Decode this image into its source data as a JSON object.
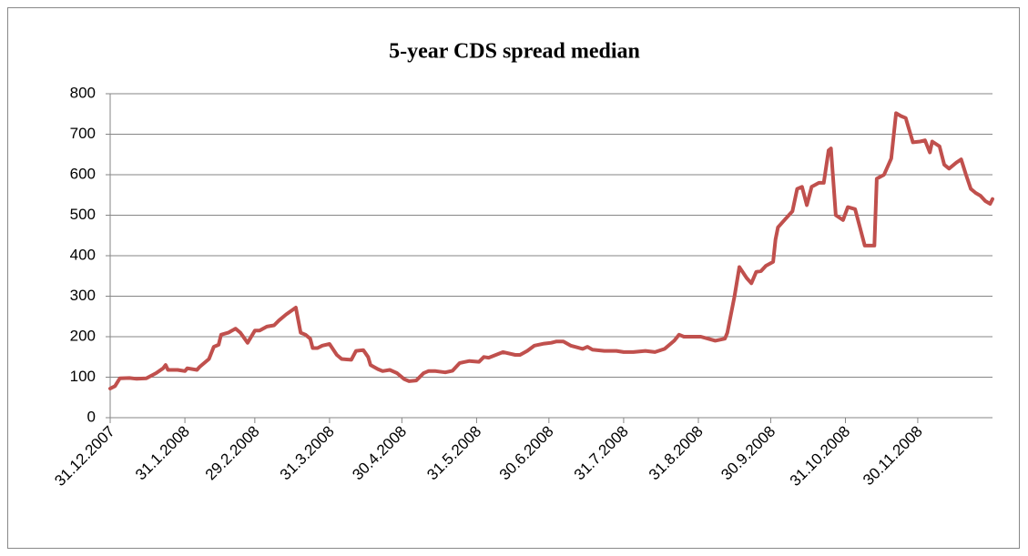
{
  "chart_data": {
    "type": "line",
    "title": "5-year CDS spread median",
    "x": [
      "31.12.2007",
      "2.1.2008",
      "4.1.2008",
      "8.1.2008",
      "11.1.2008",
      "15.1.2008",
      "19.1.2008",
      "22.1.2008",
      "23.1.2008",
      "24.1.2008",
      "28.1.2008",
      "31.1.2008",
      "1.2.2008",
      "5.2.2008",
      "6.2.2008",
      "10.2.2008",
      "12.2.2008",
      "14.2.2008",
      "15.2.2008",
      "18.2.2008",
      "21.2.2008",
      "23.2.2008",
      "26.2.2008",
      "29.2.2008",
      "2.3.2008",
      "5.3.2008",
      "8.3.2008",
      "10.3.2008",
      "13.3.2008",
      "17.3.2008",
      "19.3.2008",
      "21.3.2008",
      "23.3.2008",
      "24.3.2008",
      "26.3.2008",
      "28.3.2008",
      "31.3.2008",
      "3.4.2008",
      "5.4.2008",
      "9.4.2008",
      "11.4.2008",
      "14.4.2008",
      "16.4.2008",
      "17.4.2008",
      "20.4.2008",
      "22.4.2008",
      "25.4.2008",
      "28.4.2008",
      "1.5.2008",
      "3.5.2008",
      "6.5.2008",
      "9.5.2008",
      "11.5.2008",
      "14.5.2008",
      "18.5.2008",
      "21.5.2008",
      "24.5.2008",
      "28.5.2008",
      "1.6.2008",
      "3.6.2008",
      "5.6.2008",
      "8.6.2008",
      "11.6.2008",
      "16.6.2008",
      "18.6.2008",
      "21.6.2008",
      "24.6.2008",
      "28.6.2008",
      "1.7.2008",
      "3.7.2008",
      "6.7.2008",
      "9.7.2008",
      "14.7.2008",
      "16.7.2008",
      "18.7.2008",
      "23.7.2008",
      "28.7.2008",
      "31.7.2008",
      "4.8.2008",
      "9.8.2008",
      "13.8.2008",
      "17.8.2008",
      "21.8.2008",
      "23.8.2008",
      "25.8.2008",
      "28.8.2008",
      "1.9.2008",
      "4.9.2008",
      "7.9.2008",
      "11.9.2008",
      "12.9.2008",
      "15.9.2008",
      "17.9.2008",
      "20.9.2008",
      "22.9.2008",
      "24.9.2008",
      "26.9.2008",
      "28.9.2008",
      "1.10.2008",
      "2.10.2008",
      "3.10.2008",
      "6.10.2008",
      "9.10.2008",
      "11.10.2008",
      "13.10.2008",
      "15.10.2008",
      "17.10.2008",
      "20.10.2008",
      "22.10.2008",
      "24.10.2008",
      "25.10.2008",
      "27.10.2008",
      "30.10.2008",
      "1.11.2008",
      "4.11.2008",
      "6.11.2008",
      "8.11.2008",
      "12.11.2008",
      "13.11.2008",
      "16.11.2008",
      "19.11.2008",
      "21.11.2008",
      "23.11.2008",
      "25.11.2008",
      "28.11.2008",
      "1.12.2008",
      "3.12.2008",
      "5.12.2008",
      "6.12.2008",
      "9.12.2008",
      "11.12.2008",
      "13.12.2008",
      "16.12.2008",
      "18.12.2008",
      "20.12.2008",
      "22.12.2008",
      "24.12.2008",
      "26.12.2008",
      "28.12.2008",
      "30.12.2008",
      "31.12.2008"
    ],
    "series": [
      {
        "color": "#c0504d",
        "values": [
          72,
          78,
          97,
          98,
          96,
          97,
          110,
          122,
          130,
          118,
          118,
          115,
          122,
          118,
          125,
          145,
          175,
          180,
          205,
          210,
          220,
          210,
          185,
          215,
          215,
          225,
          228,
          240,
          255,
          272,
          210,
          205,
          195,
          172,
          172,
          178,
          182,
          155,
          145,
          143,
          165,
          167,
          150,
          130,
          120,
          115,
          118,
          110,
          95,
          90,
          92,
          110,
          115,
          115,
          112,
          116,
          135,
          140,
          138,
          150,
          148,
          155,
          162,
          155,
          155,
          165,
          178,
          183,
          185,
          188,
          188,
          178,
          170,
          175,
          168,
          165,
          165,
          162,
          162,
          165,
          162,
          170,
          190,
          205,
          200,
          200,
          200,
          195,
          190,
          195,
          210,
          300,
          372,
          345,
          332,
          360,
          362,
          375,
          385,
          440,
          470,
          490,
          510,
          565,
          570,
          525,
          570,
          580,
          580,
          660,
          665,
          500,
          488,
          520,
          515,
          470,
          425,
          425,
          590,
          600,
          640,
          752,
          745,
          740,
          680,
          682,
          685,
          655,
          682,
          670,
          625,
          615,
          630,
          638,
          600,
          565,
          555,
          548,
          535,
          528,
          540
        ]
      }
    ],
    "xlim": [
      "31.12.2007",
      "31.12.2008"
    ],
    "xticks": [
      "31.12.2007",
      "31.1.2008",
      "29.2.2008",
      "31.3.2008",
      "30.4.2008",
      "31.5.2008",
      "30.6.2008",
      "31.7.2008",
      "31.8.2008",
      "30.9.2008",
      "31.10.2008",
      "30.11.2008"
    ],
    "ylim": [
      0,
      800
    ],
    "yticks": [
      0,
      100,
      200,
      300,
      400,
      500,
      600,
      700,
      800
    ],
    "grid": true
  }
}
